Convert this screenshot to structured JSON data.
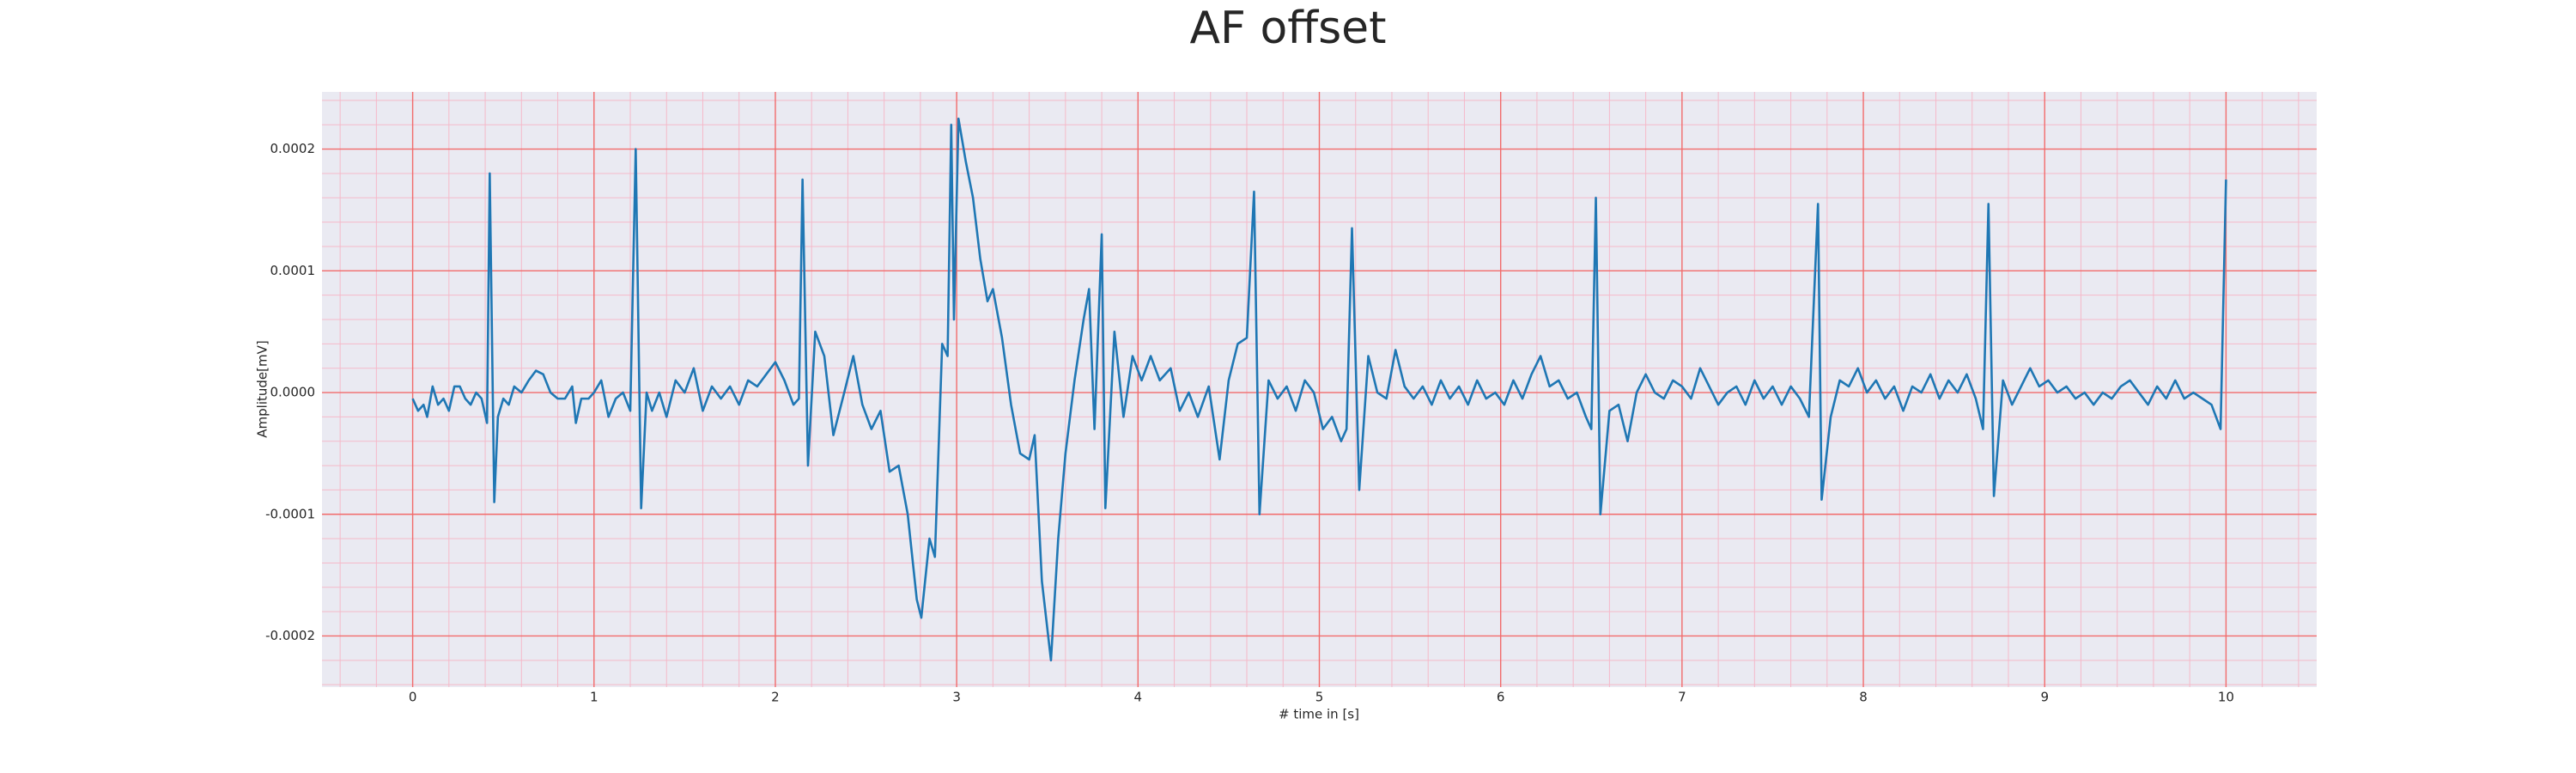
{
  "chart_data": {
    "type": "line",
    "title": "AF offset",
    "xlabel": "# time in [s]",
    "ylabel": "Amplitude[mV]",
    "x": [
      0,
      0.03,
      0.06,
      0.08,
      0.11,
      0.14,
      0.17,
      0.2,
      0.23,
      0.26,
      0.29,
      0.32,
      0.35,
      0.38,
      0.41,
      0.425,
      0.45,
      0.47,
      0.5,
      0.53,
      0.56,
      0.6,
      0.64,
      0.68,
      0.72,
      0.76,
      0.8,
      0.84,
      0.88,
      0.9,
      0.93,
      0.97,
      1.0,
      1.04,
      1.08,
      1.12,
      1.16,
      1.2,
      1.23,
      1.26,
      1.29,
      1.32,
      1.36,
      1.4,
      1.45,
      1.5,
      1.55,
      1.6,
      1.65,
      1.7,
      1.75,
      1.8,
      1.85,
      1.9,
      2.0,
      2.05,
      2.1,
      2.13,
      2.15,
      2.18,
      2.22,
      2.27,
      2.32,
      2.38,
      2.43,
      2.48,
      2.53,
      2.58,
      2.63,
      2.68,
      2.73,
      2.78,
      2.805,
      2.85,
      2.88,
      2.92,
      2.95,
      2.97,
      2.985,
      3.01,
      3.05,
      3.09,
      3.13,
      3.17,
      3.2,
      3.25,
      3.3,
      3.35,
      3.4,
      3.43,
      3.47,
      3.52,
      3.56,
      3.6,
      3.65,
      3.7,
      3.73,
      3.76,
      3.8,
      3.82,
      3.87,
      3.92,
      3.97,
      4.02,
      4.07,
      4.12,
      4.18,
      4.23,
      4.28,
      4.33,
      4.39,
      4.45,
      4.5,
      4.55,
      4.6,
      4.64,
      4.67,
      4.72,
      4.77,
      4.82,
      4.87,
      4.92,
      4.97,
      5.02,
      5.07,
      5.12,
      5.15,
      5.18,
      5.22,
      5.27,
      5.32,
      5.37,
      5.42,
      5.47,
      5.52,
      5.57,
      5.62,
      5.67,
      5.72,
      5.77,
      5.82,
      5.87,
      5.92,
      5.97,
      6.02,
      6.07,
      6.12,
      6.17,
      6.22,
      6.27,
      6.32,
      6.37,
      6.42,
      6.47,
      6.5,
      6.525,
      6.55,
      6.6,
      6.65,
      6.7,
      6.75,
      6.8,
      6.85,
      6.9,
      6.95,
      7.0,
      7.05,
      7.1,
      7.15,
      7.2,
      7.25,
      7.3,
      7.35,
      7.4,
      7.45,
      7.5,
      7.55,
      7.6,
      7.65,
      7.7,
      7.75,
      7.77,
      7.82,
      7.87,
      7.92,
      7.97,
      8.02,
      8.07,
      8.12,
      8.17,
      8.22,
      8.27,
      8.32,
      8.37,
      8.42,
      8.47,
      8.52,
      8.57,
      8.62,
      8.66,
      8.69,
      8.72,
      8.77,
      8.82,
      8.87,
      8.92,
      8.97,
      9.02,
      9.07,
      9.12,
      9.17,
      9.22,
      9.27,
      9.32,
      9.37,
      9.42,
      9.47,
      9.52,
      9.57,
      9.62,
      9.67,
      9.72,
      9.77,
      9.82,
      9.87,
      9.92,
      9.97,
      10.0
    ],
    "values": [
      -5e-06,
      -1.5e-05,
      -1e-05,
      -2e-05,
      5e-06,
      -1e-05,
      -5e-06,
      -1.5e-05,
      5e-06,
      5e-06,
      -5e-06,
      -1e-05,
      0,
      -5e-06,
      -2.5e-05,
      0.00018,
      -9e-05,
      -2e-05,
      -5e-06,
      -1e-05,
      5e-06,
      0,
      1e-05,
      1.8e-05,
      1.5e-05,
      0,
      -5e-06,
      -5e-06,
      5e-06,
      -2.5e-05,
      -5e-06,
      -5e-06,
      0,
      1e-05,
      -2e-05,
      -5e-06,
      0,
      -1.5e-05,
      0.0002,
      -9.5e-05,
      0,
      -1.5e-05,
      0,
      -2e-05,
      1e-05,
      0,
      2e-05,
      -1.5e-05,
      5e-06,
      -5e-06,
      5e-06,
      -1e-05,
      1e-05,
      5e-06,
      2.5e-05,
      1e-05,
      -1e-05,
      -5e-06,
      0.000175,
      -6e-05,
      5e-05,
      3e-05,
      -3.5e-05,
      0,
      3e-05,
      -1e-05,
      -3e-05,
      -1.5e-05,
      -6.5e-05,
      -6e-05,
      -0.0001,
      -0.00017,
      -0.000185,
      -0.00012,
      -0.000135,
      4e-05,
      3e-05,
      0.00022,
      6e-05,
      0.000225,
      0.00019,
      0.00016,
      0.00011,
      7.5e-05,
      8.5e-05,
      4.5e-05,
      -1e-05,
      -5e-05,
      -5.5e-05,
      -3.5e-05,
      -0.000155,
      -0.00022,
      -0.00012,
      -5e-05,
      1e-05,
      6e-05,
      8.5e-05,
      -3e-05,
      0.00013,
      -9.5e-05,
      5e-05,
      -2e-05,
      3e-05,
      1e-05,
      3e-05,
      1e-05,
      2e-05,
      -1.5e-05,
      0,
      -2e-05,
      5e-06,
      -5.5e-05,
      1e-05,
      4e-05,
      4.5e-05,
      0.000165,
      -0.0001,
      1e-05,
      -5e-06,
      5e-06,
      -1.5e-05,
      1e-05,
      0,
      -3e-05,
      -2e-05,
      -4e-05,
      -3e-05,
      0.000135,
      -8e-05,
      3e-05,
      0,
      -5e-06,
      3.5e-05,
      5e-06,
      -5e-06,
      5e-06,
      -1e-05,
      1e-05,
      -5e-06,
      5e-06,
      -1e-05,
      1e-05,
      -5e-06,
      0,
      -1e-05,
      1e-05,
      -5e-06,
      1.5e-05,
      3e-05,
      5e-06,
      1e-05,
      -5e-06,
      0,
      -2e-05,
      -3e-05,
      0.00016,
      -0.0001,
      -1.5e-05,
      -1e-05,
      -4e-05,
      0,
      1.5e-05,
      0,
      -5e-06,
      1e-05,
      5e-06,
      -5e-06,
      2e-05,
      5e-06,
      -1e-05,
      0,
      5e-06,
      -1e-05,
      1e-05,
      -5e-06,
      5e-06,
      -1e-05,
      5e-06,
      -5e-06,
      -2e-05,
      0.000155,
      -8.8e-05,
      -2e-05,
      1e-05,
      5e-06,
      2e-05,
      0,
      1e-05,
      -5e-06,
      5e-06,
      -1.5e-05,
      5e-06,
      0,
      1.5e-05,
      -5e-06,
      1e-05,
      0,
      1.5e-05,
      -5e-06,
      -3e-05,
      0.000155,
      -8.5e-05,
      1e-05,
      -1e-05,
      5e-06,
      2e-05,
      5e-06,
      1e-05,
      0,
      5e-06,
      -5e-06,
      0,
      -1e-05,
      0,
      -5e-06,
      5e-06,
      1e-05,
      0,
      -1e-05,
      5e-06,
      -5e-06,
      1e-05,
      -5e-06,
      0,
      -5e-06,
      -1e-05,
      -3e-05,
      0.000175
    ],
    "color": "#1f77b4",
    "xlim": [
      -0.5,
      10.5
    ],
    "xticks": [
      0,
      1,
      2,
      3,
      4,
      5,
      6,
      7,
      8,
      9,
      10
    ],
    "ylim": [
      -0.000242,
      0.000247
    ],
    "yticks": [
      -0.0002,
      -0.0001,
      {
        "value": 0,
        "label": "0.0000"
      },
      0.0001,
      0.0002
    ],
    "grid": true,
    "minor_divisions": 5
  }
}
